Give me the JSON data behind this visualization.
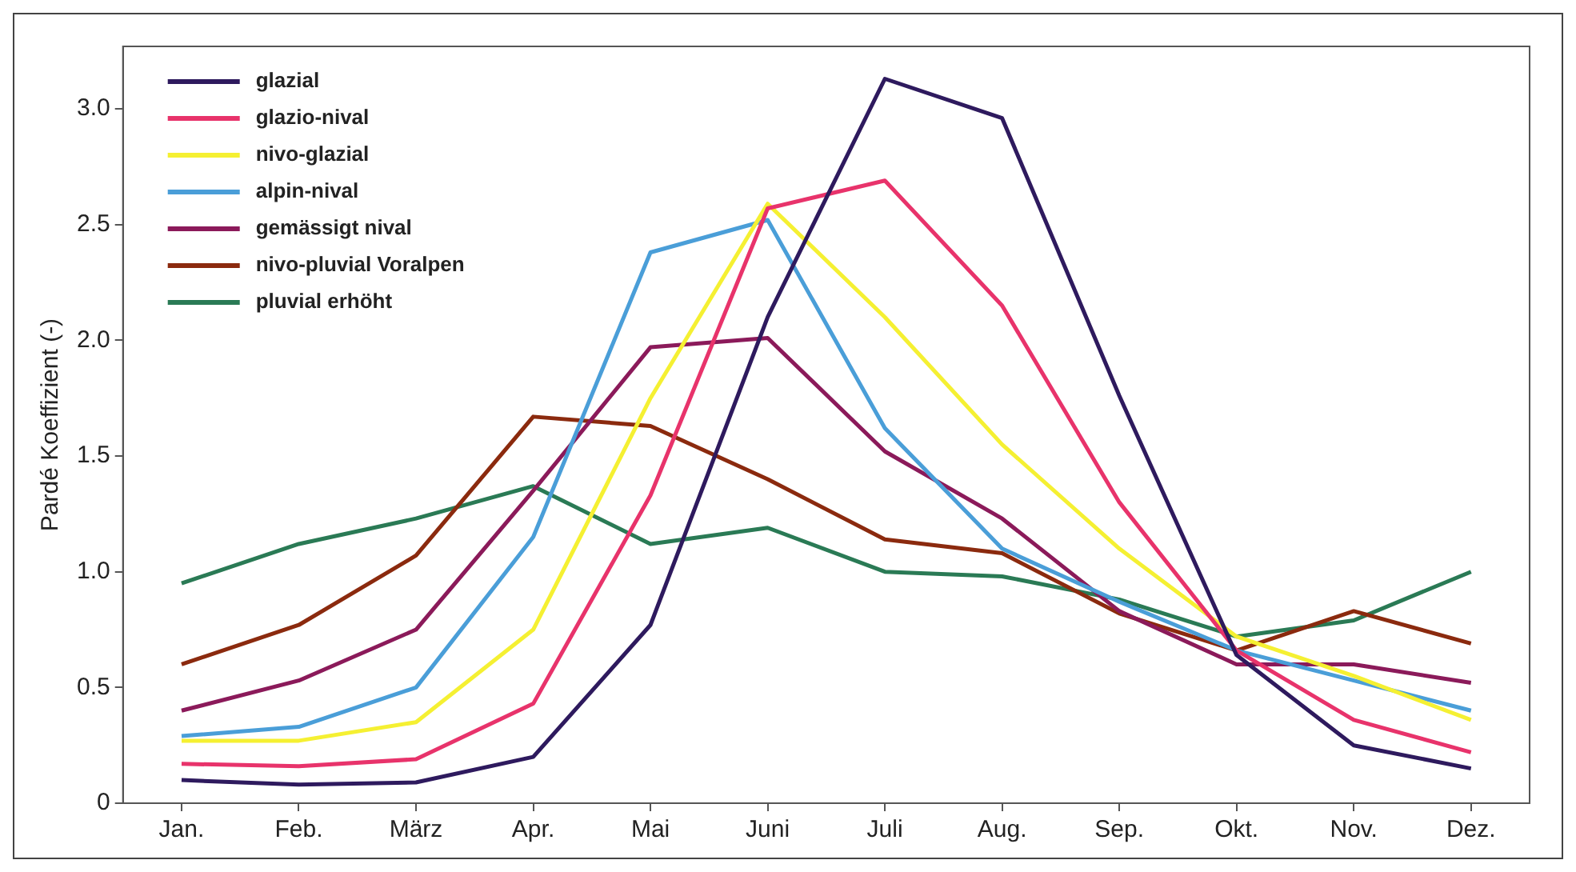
{
  "chart_data": {
    "type": "line",
    "ylabel": "Pardé Koeffizient (-)",
    "categories": [
      "Jan.",
      "Feb.",
      "März",
      "Apr.",
      "Mai",
      "Juni",
      "Juli",
      "Aug.",
      "Sep.",
      "Okt.",
      "Nov.",
      "Dez."
    ],
    "series": [
      {
        "name": "glazial",
        "color": "#2e1a5e",
        "values": [
          0.1,
          0.08,
          0.09,
          0.2,
          0.77,
          2.1,
          3.13,
          2.96,
          1.76,
          0.64,
          0.25,
          0.15
        ]
      },
      {
        "name": "glazio-nival",
        "color": "#e8336b",
        "values": [
          0.17,
          0.16,
          0.19,
          0.43,
          1.33,
          2.57,
          2.69,
          2.15,
          1.3,
          0.66,
          0.36,
          0.22
        ]
      },
      {
        "name": "nivo-glazial",
        "color": "#f5f032",
        "values": [
          0.27,
          0.27,
          0.35,
          0.75,
          1.75,
          2.59,
          2.1,
          1.55,
          1.1,
          0.72,
          0.55,
          0.36
        ]
      },
      {
        "name": "alpin-nival",
        "color": "#4a9ed8",
        "values": [
          0.29,
          0.33,
          0.5,
          1.15,
          2.38,
          2.52,
          1.62,
          1.1,
          0.87,
          0.66,
          0.53,
          0.4
        ]
      },
      {
        "name": "gemässigt nival",
        "color": "#8b1a5a",
        "values": [
          0.4,
          0.53,
          0.75,
          1.35,
          1.97,
          2.01,
          1.52,
          1.23,
          0.83,
          0.6,
          0.6,
          0.52
        ]
      },
      {
        "name": "nivo-pluvial Voralpen",
        "color": "#8b2a0e",
        "values": [
          0.6,
          0.77,
          1.07,
          1.67,
          1.63,
          1.4,
          1.14,
          1.08,
          0.82,
          0.66,
          0.83,
          0.69
        ]
      },
      {
        "name": "pluvial erhöht",
        "color": "#2a7a55",
        "values": [
          0.95,
          1.12,
          1.23,
          1.37,
          1.12,
          1.19,
          1.0,
          0.98,
          0.88,
          0.72,
          0.79,
          1.0
        ]
      }
    ],
    "ylim": [
      0,
      3.27
    ],
    "yticks": [
      0,
      {
        "value": 0.5,
        "label": "0.5"
      },
      {
        "value": 1,
        "label": "1.0"
      },
      {
        "value": 1.5,
        "label": "1.5"
      },
      {
        "value": 2,
        "label": "2.0"
      },
      {
        "value": 2.5,
        "label": "2.5"
      },
      {
        "value": 3,
        "label": "3.0"
      }
    ],
    "grid": false,
    "legend": "top left",
    "marker": "none",
    "line_style": "solid"
  }
}
